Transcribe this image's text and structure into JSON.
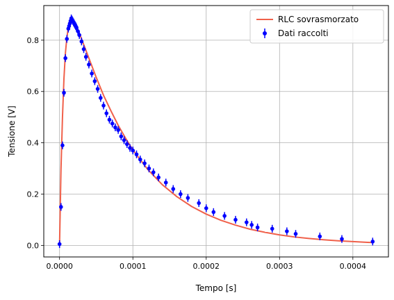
{
  "chart_data": {
    "type": "scatter",
    "title": "",
    "xlabel": "Tempo [s]",
    "ylabel": "Tensione [V]",
    "xlim": [
      -2.15e-05,
      0.0004485
    ],
    "ylim": [
      -0.045,
      0.935
    ],
    "x_ticks": [
      0,
      0.0001,
      0.0002,
      0.0003,
      0.0004
    ],
    "x_tick_labels": [
      "0.0000",
      "0.0001",
      "0.0002",
      "0.0003",
      "0.0004"
    ],
    "y_ticks": [
      0,
      0.2,
      0.4,
      0.6,
      0.8
    ],
    "y_tick_labels": [
      "0.0",
      "0.2",
      "0.4",
      "0.6",
      "0.8"
    ],
    "grid": true,
    "legend_position": "top-right",
    "colors": {
      "fit": "#f0604a",
      "data": "#0000ff"
    },
    "series": [
      {
        "name": "RLC sovrasmorzato",
        "type": "line",
        "x": [
          0,
          2e-06,
          4e-06,
          6e-06,
          8e-06,
          1e-05,
          1.2e-05,
          1.4e-05,
          1.6e-05,
          1.8e-05,
          2e-05,
          2.4e-05,
          2.8e-05,
          3.2e-05,
          3.6e-05,
          4e-05,
          5e-05,
          6e-05,
          7e-05,
          8e-05,
          9e-05,
          0.0001,
          0.00012,
          0.00014,
          0.00016,
          0.00018,
          0.0002,
          0.00022,
          0.00024,
          0.00026,
          0.00028,
          0.0003,
          0.00032,
          0.00034,
          0.00036,
          0.00038,
          0.0004,
          0.00042,
          0.000427
        ],
        "y": [
          0.0,
          0.3,
          0.5,
          0.65,
          0.75,
          0.81,
          0.85,
          0.87,
          0.875,
          0.872,
          0.865,
          0.845,
          0.82,
          0.79,
          0.76,
          0.73,
          0.655,
          0.585,
          0.525,
          0.468,
          0.418,
          0.372,
          0.297,
          0.237,
          0.19,
          0.152,
          0.122,
          0.098,
          0.079,
          0.063,
          0.051,
          0.041,
          0.033,
          0.027,
          0.022,
          0.018,
          0.015,
          0.012,
          0.011
        ]
      },
      {
        "name": "Dati raccolti",
        "type": "errorbar",
        "yerr": 0.015,
        "x": [
          0,
          2e-06,
          4e-06,
          6e-06,
          8e-06,
          1e-05,
          1.2e-05,
          1.3e-05,
          1.4e-05,
          1.5e-05,
          1.6e-05,
          1.7e-05,
          1.8e-05,
          1.9e-05,
          2e-05,
          2.1e-05,
          2.2e-05,
          2.3e-05,
          2.5e-05,
          2.7e-05,
          3e-05,
          3.3e-05,
          3.6e-05,
          4e-05,
          4.4e-05,
          4.8e-05,
          5.2e-05,
          5.6e-05,
          6e-05,
          6.4e-05,
          6.8e-05,
          7.2e-05,
          7.6e-05,
          8e-05,
          8.4e-05,
          8.8e-05,
          9.2e-05,
          9.6e-05,
          0.0001,
          0.000105,
          0.00011,
          0.000116,
          0.000122,
          0.000128,
          0.000135,
          0.000145,
          0.000155,
          0.000165,
          0.000175,
          0.00019,
          0.0002,
          0.00021,
          0.000225,
          0.00024,
          0.000255,
          0.000262,
          0.00027,
          0.00029,
          0.00031,
          0.000322,
          0.000355,
          0.000385,
          0.000427
        ],
        "y": [
          0.005,
          0.15,
          0.39,
          0.595,
          0.73,
          0.805,
          0.845,
          0.855,
          0.865,
          0.875,
          0.885,
          0.88,
          0.875,
          0.87,
          0.865,
          0.86,
          0.855,
          0.85,
          0.835,
          0.82,
          0.795,
          0.765,
          0.735,
          0.705,
          0.67,
          0.64,
          0.61,
          0.575,
          0.545,
          0.515,
          0.49,
          0.475,
          0.46,
          0.45,
          0.425,
          0.41,
          0.395,
          0.38,
          0.37,
          0.355,
          0.335,
          0.32,
          0.3,
          0.285,
          0.265,
          0.245,
          0.22,
          0.2,
          0.185,
          0.165,
          0.145,
          0.13,
          0.115,
          0.1,
          0.09,
          0.08,
          0.07,
          0.065,
          0.055,
          0.045,
          0.035,
          0.025,
          0.015
        ]
      }
    ]
  }
}
